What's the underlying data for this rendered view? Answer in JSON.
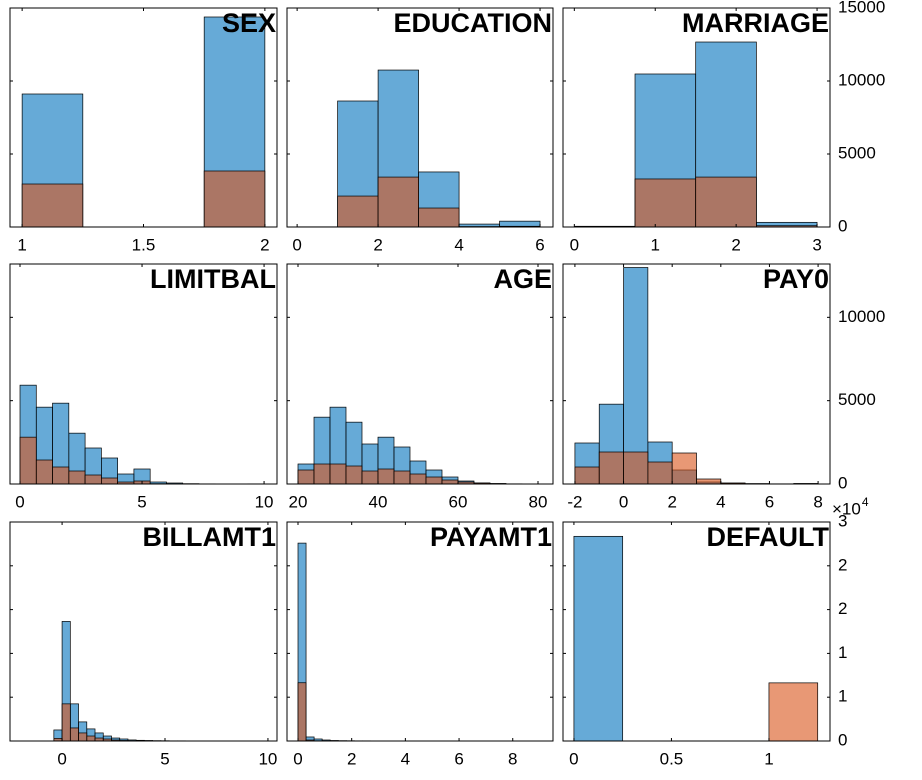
{
  "chart_data": [
    {
      "type": "histogram",
      "title": "SEX",
      "alpha": 0.6,
      "bins": [
        1,
        1.25,
        1.5,
        1.75,
        2
      ],
      "series": [
        {
          "color": "#0072BD",
          "values": [
            9110,
            0,
            0,
            14384
          ]
        },
        {
          "color": "#D95319",
          "values": [
            2945,
            0,
            0,
            3836
          ]
        }
      ],
      "xlim": [
        0.95,
        2.05
      ],
      "xticks": [
        1,
        1.5,
        2
      ],
      "ylim": [
        0,
        15000
      ],
      "yticks": [
        0,
        5000,
        10000,
        15000
      ],
      "ytick_labels": false
    },
    {
      "type": "histogram",
      "title": "EDUCATION",
      "alpha": 0.6,
      "bins": [
        0,
        1,
        2,
        3,
        4,
        5,
        6
      ],
      "series": [
        {
          "color": "#0072BD",
          "values": [
            14,
            8630,
            10750,
            3770,
            200,
            400
          ]
        },
        {
          "color": "#D95319",
          "values": [
            0,
            2120,
            3420,
            1300,
            30,
            50
          ]
        }
      ],
      "xlim": [
        -0.25,
        6.32
      ],
      "xticks": [
        0,
        2,
        4,
        6
      ],
      "ylim": [
        0,
        15000
      ],
      "yticks": [
        0,
        5000,
        10000,
        15000
      ],
      "ytick_labels": false
    },
    {
      "type": "histogram",
      "title": "MARRIAGE",
      "alpha": 0.6,
      "bins": [
        0,
        0.75,
        1.5,
        2.25,
        3
      ],
      "series": [
        {
          "color": "#0072BD",
          "values": [
            50,
            10480,
            12670,
            320
          ]
        },
        {
          "color": "#D95319",
          "values": [
            5,
            3290,
            3420,
            90
          ]
        }
      ],
      "xlim": [
        -0.14,
        3.16
      ],
      "xticks": [
        0,
        1,
        2,
        3
      ],
      "ylim": [
        0,
        15000
      ],
      "yticks": [
        0,
        5000,
        10000,
        15000
      ],
      "ytick_labels": true
    },
    {
      "type": "histogram",
      "title": "LIMITBAL",
      "alpha": 0.6,
      "bins": [
        0,
        0.667,
        1.333,
        2,
        2.667,
        3.333,
        4,
        4.667,
        5.333,
        6,
        6.667,
        7.333,
        8,
        8.667,
        9.333,
        10
      ],
      "series": [
        {
          "color": "#0072BD",
          "values": [
            5930,
            4610,
            4850,
            3050,
            2160,
            1560,
            600,
            900,
            120,
            60,
            20,
            10,
            5,
            5,
            10
          ]
        },
        {
          "color": "#D95319",
          "values": [
            2810,
            1440,
            1020,
            780,
            540,
            360,
            120,
            180,
            20,
            10,
            5,
            0,
            0,
            0,
            0
          ]
        }
      ],
      "xlim": [
        -0.41,
        10.53
      ],
      "xticks": [
        0,
        5,
        10
      ],
      "ylim": [
        0,
        13200
      ],
      "yticks": [
        0,
        5000,
        10000
      ],
      "ytick_labels": false
    },
    {
      "type": "histogram",
      "title": "AGE",
      "alpha": 0.6,
      "bins": [
        20,
        24,
        28,
        32,
        36,
        40,
        44,
        48,
        52,
        56,
        60,
        64,
        68,
        72,
        76,
        80
      ],
      "series": [
        {
          "color": "#0072BD",
          "values": [
            1200,
            4010,
            4610,
            3710,
            2400,
            2810,
            2220,
            1380,
            840,
            420,
            180,
            60,
            30,
            10,
            5
          ]
        },
        {
          "color": "#D95319",
          "values": [
            840,
            1200,
            1200,
            1080,
            780,
            900,
            780,
            600,
            420,
            240,
            120,
            60,
            20,
            10,
            0
          ]
        }
      ],
      "xlim": [
        17.25,
        83.75
      ],
      "xticks": [
        20,
        40,
        60,
        80
      ],
      "ylim": [
        0,
        13200
      ],
      "yticks": [
        0,
        5000,
        10000
      ],
      "ytick_labels": false
    },
    {
      "type": "histogram",
      "title": "PAY0",
      "alpha": 0.6,
      "bins": [
        -2,
        -1,
        0,
        1,
        2,
        3,
        4,
        5,
        6,
        7,
        8
      ],
      "series": [
        {
          "color": "#0072BD",
          "values": [
            2460,
            4790,
            12990,
            2520,
            840,
            120,
            50,
            20,
            10,
            20
          ]
        },
        {
          "color": "#D95319",
          "values": [
            1020,
            1920,
            1920,
            1320,
            1860,
            300,
            60,
            20,
            10,
            30
          ]
        }
      ],
      "xlim": [
        -2.49,
        8.49
      ],
      "xticks": [
        -2,
        0,
        2,
        4,
        6,
        8
      ],
      "ylim": [
        0,
        13200
      ],
      "yticks": [
        0,
        5000,
        10000
      ],
      "ytick_labels": true
    },
    {
      "type": "histogram",
      "title": "BILLAMT1",
      "alpha": 0.6,
      "bins": [
        -2,
        -1.6,
        -1.2,
        -0.8,
        -0.4,
        0,
        0.4,
        0.8,
        1.2,
        1.6,
        2,
        2.4,
        2.8,
        3.2,
        3.6,
        4,
        4.4,
        4.8,
        5.2,
        5.6,
        6,
        6.4,
        6.8,
        7.2,
        7.6,
        8,
        8.4,
        8.8,
        9.2,
        9.6,
        10
      ],
      "series": [
        {
          "color": "#0072BD",
          "values": [
            10,
            10,
            5,
            5,
            1260,
            13650,
            4240,
            2180,
            1380,
            920,
            570,
            340,
            230,
            120,
            80,
            60,
            40,
            30,
            20,
            20,
            15,
            10,
            10,
            10,
            5,
            5,
            5,
            5,
            5,
            5
          ]
        },
        {
          "color": "#D95319",
          "values": [
            2,
            2,
            1,
            1,
            300,
            4240,
            1490,
            920,
            570,
            340,
            230,
            115,
            60,
            40,
            20,
            10,
            10,
            5,
            5,
            5,
            0,
            0,
            0,
            0,
            0,
            0,
            0,
            0,
            0,
            0
          ]
        }
      ],
      "xlim": [
        -2.53,
        10.44
      ],
      "xticks": [
        0,
        5,
        10
      ],
      "ylim": [
        0,
        25000
      ],
      "yticks": [
        0,
        5000,
        10000,
        15000,
        20000,
        25000
      ],
      "ytick_labels": false
    },
    {
      "type": "histogram",
      "title": "PAYAMT1",
      "alpha": 0.6,
      "bins": [
        0,
        0.3,
        0.6,
        0.9,
        1.2,
        1.5,
        1.8,
        2.1,
        2.4,
        2.7,
        3,
        3.3,
        3.6,
        3.9,
        4.2,
        4.5,
        4.8,
        5.1,
        5.4,
        5.7,
        6,
        6.3,
        6.6,
        6.9,
        7.2,
        7.5,
        7.8,
        8.1,
        8.4,
        8.7,
        9
      ],
      "series": [
        {
          "color": "#0072BD",
          "values": [
            22590,
            460,
            230,
            115,
            60,
            40,
            30,
            20,
            20,
            10,
            10,
            10,
            5,
            5,
            5,
            5,
            5,
            5,
            5,
            5,
            0,
            0,
            5,
            0,
            0,
            0,
            0,
            0,
            0,
            5
          ]
        },
        {
          "color": "#D95319",
          "values": [
            6650,
            115,
            30,
            10,
            5,
            5,
            0,
            0,
            0,
            0,
            0,
            0,
            0,
            0,
            0,
            0,
            0,
            0,
            0,
            0,
            0,
            0,
            0,
            0,
            0,
            0,
            0,
            0,
            0,
            0
          ]
        }
      ],
      "xlim": [
        -0.41,
        9.5
      ],
      "xticks": [
        0,
        2,
        4,
        6,
        8
      ],
      "ylim": [
        0,
        25000
      ],
      "yticks": [
        0,
        5000,
        10000,
        15000,
        20000,
        25000
      ],
      "ytick_labels": false
    },
    {
      "type": "histogram",
      "title": "DEFAULT",
      "alpha": 0.6,
      "bins": [
        0,
        0.25,
        0.5,
        0.75,
        1,
        1.25
      ],
      "series": [
        {
          "color": "#0072BD",
          "values": [
            23364,
            0,
            0,
            0,
            0
          ]
        },
        {
          "color": "#D95319",
          "values": [
            0,
            0,
            0,
            0,
            6636
          ]
        }
      ],
      "xlim": [
        -0.056,
        1.313
      ],
      "xticks": [
        0,
        0.5,
        1
      ],
      "ylim": [
        0,
        25000
      ],
      "yticks": [
        0,
        {
          "value": 5000,
          "label": "1"
        },
        {
          "value": 10000,
          "label": "1"
        },
        {
          "value": 15000,
          "label": "2"
        },
        {
          "value": 20000,
          "label": "2"
        },
        {
          "value": 25000,
          "label": "3"
        }
      ],
      "ytick_labels": true,
      "y_multiplier": "×10",
      "y_multiplier_power": "4"
    }
  ]
}
